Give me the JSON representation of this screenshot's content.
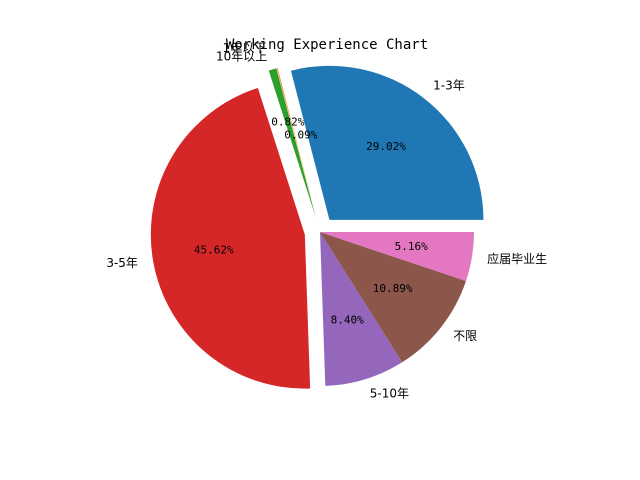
{
  "chart_data": {
    "type": "pie",
    "title": "Working Experience Chart",
    "slices": [
      {
        "label": "1-3年",
        "percent": 29.02,
        "color": "#1f77b4",
        "percent_text": "29.02%",
        "exploded": true
      },
      {
        "label": "10年以上",
        "percent": 0.09,
        "color": "#ff7f0e",
        "percent_text": "0.09%",
        "exploded": true
      },
      {
        "label": "1年以下",
        "percent": 0.82,
        "color": "#2ca02c",
        "percent_text": "0.82%",
        "exploded": true
      },
      {
        "label": "3-5年",
        "percent": 45.62,
        "color": "#d62728",
        "percent_text": "45.62%",
        "exploded": true
      },
      {
        "label": "5-10年",
        "percent": 8.4,
        "color": "#9467bd",
        "percent_text": "8.40%",
        "exploded": false
      },
      {
        "label": "不限",
        "percent": 10.89,
        "color": "#8c564b",
        "percent_text": "10.89%",
        "exploded": false
      },
      {
        "label": "应届毕业生",
        "percent": 5.16,
        "color": "#e377c2",
        "percent_text": "5.16%",
        "exploded": false
      }
    ]
  }
}
